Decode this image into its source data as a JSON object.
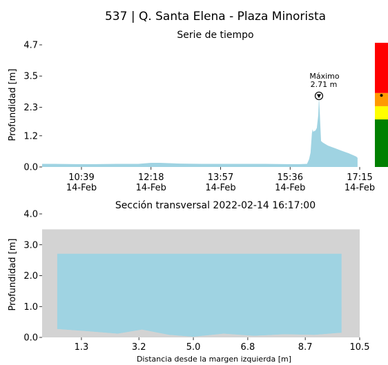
{
  "page_title": "537 | Q. Santa Elena - Plaza Minorista",
  "colors": {
    "water": "#9fd3e2",
    "wall": "#d3d3d3",
    "alert_red": "#ff0000",
    "alert_orange": "#ff9a00",
    "alert_yellow": "#ffff00",
    "alert_green": "#008000",
    "text": "#000000"
  },
  "chart_data": [
    {
      "type": "area",
      "title": "Serie de tiempo",
      "ylabel": "Profundidad [m]",
      "xlabel": "",
      "ylim": [
        0,
        4.7
      ],
      "xlim": [
        "09:43",
        "17:15"
      ],
      "yticks": [
        {
          "value": 0.0,
          "label": "0.0"
        },
        {
          "value": 1.2,
          "label": "1.2"
        },
        {
          "value": 2.3,
          "label": "2.3"
        },
        {
          "value": 3.5,
          "label": "3.5"
        },
        {
          "value": 4.7,
          "label": "4.7"
        }
      ],
      "xticks": [
        {
          "time": "10:39",
          "label": "10:39",
          "label2": "14-Feb"
        },
        {
          "time": "12:18",
          "label": "12:18",
          "label2": "14-Feb"
        },
        {
          "time": "13:57",
          "label": "13:57",
          "label2": "14-Feb"
        },
        {
          "time": "15:36",
          "label": "15:36",
          "label2": "14-Feb"
        },
        {
          "time": "17:15",
          "label": "17:15",
          "label2": "14-Feb"
        }
      ],
      "series": [
        {
          "x": [
            "09:43",
            "10:00",
            "10:30",
            "11:00",
            "11:30",
            "12:00",
            "12:18",
            "12:30",
            "13:00",
            "13:30",
            "14:00",
            "14:30",
            "15:00",
            "15:30",
            "15:50",
            "16:00",
            "16:03",
            "16:05",
            "16:07",
            "16:08",
            "16:09",
            "16:10",
            "16:12",
            "16:14",
            "16:16",
            "16:17",
            "16:18",
            "16:19",
            "16:20",
            "16:22",
            "16:25",
            "16:30",
            "16:40",
            "16:50",
            "17:00",
            "17:10",
            "17:12"
          ],
          "y": [
            0.12,
            0.12,
            0.11,
            0.11,
            0.12,
            0.12,
            0.16,
            0.16,
            0.13,
            0.12,
            0.12,
            0.12,
            0.12,
            0.11,
            0.11,
            0.12,
            0.3,
            0.55,
            1.3,
            1.45,
            1.35,
            1.38,
            1.4,
            1.5,
            2.0,
            2.71,
            2.2,
            1.6,
            1.0,
            0.95,
            0.9,
            0.82,
            0.72,
            0.62,
            0.52,
            0.4,
            0.35
          ]
        }
      ],
      "annotation": {
        "label": "Máximo",
        "value_label": "2.71 m",
        "time": "16:17",
        "value": 2.71
      },
      "alert_bar": {
        "range": [
          0,
          4.7
        ],
        "bands": [
          {
            "level": "green",
            "from": 0,
            "to": 1.8
          },
          {
            "level": "yellow",
            "from": 1.8,
            "to": 2.3
          },
          {
            "level": "orange",
            "from": 2.3,
            "to": 2.8
          },
          {
            "level": "red",
            "from": 2.8,
            "to": 4.7
          }
        ],
        "marker_value": 2.71
      }
    },
    {
      "type": "area",
      "title": "Sección transversal 2022-02-14 16:17:00",
      "ylabel": "Profundidad [m]",
      "xlabel": "Distancia desde la margen izquierda [m]",
      "xlim": [
        0,
        10.5
      ],
      "ylim": [
        0,
        4.0
      ],
      "yticks": [
        {
          "value": 0.0,
          "label": "0.0"
        },
        {
          "value": 1.0,
          "label": "1.0"
        },
        {
          "value": 2.0,
          "label": "2.0"
        },
        {
          "value": 3.0,
          "label": "3.0"
        },
        {
          "value": 4.0,
          "label": "4.0"
        }
      ],
      "xticks": [
        {
          "value": 1.3,
          "label": "1.3"
        },
        {
          "value": 3.2,
          "label": "3.2"
        },
        {
          "value": 5.0,
          "label": "5.0"
        },
        {
          "value": 6.8,
          "label": "6.8"
        },
        {
          "value": 8.7,
          "label": "8.7"
        },
        {
          "value": 10.5,
          "label": "10.5"
        }
      ],
      "water_level": 2.71,
      "bank_height": 3.5,
      "left_wall": [
        0,
        0.5
      ],
      "right_wall": [
        9.9,
        10.5
      ],
      "bed": {
        "x": [
          0.5,
          1.5,
          2.5,
          3.3,
          4.2,
          5.0,
          6.0,
          7.0,
          8.0,
          9.0,
          9.9
        ],
        "y": [
          0.27,
          0.2,
          0.12,
          0.25,
          0.08,
          0.02,
          0.12,
          0.05,
          0.1,
          0.08,
          0.15
        ]
      }
    }
  ]
}
